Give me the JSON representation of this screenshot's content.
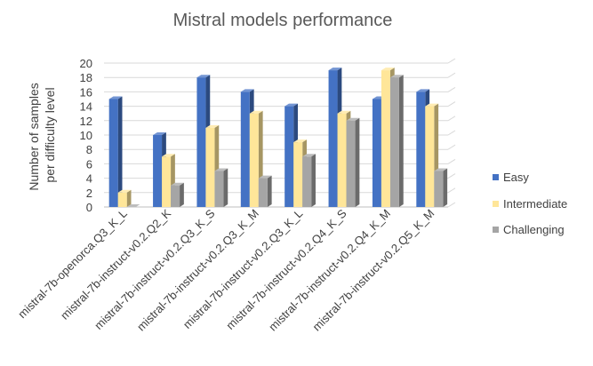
{
  "chart_data": {
    "type": "bar",
    "title": "Mistral models performance",
    "ylabel": "Number of samples per difficulty level",
    "ylabel_lines": [
      "Number of samples",
      "per difficulty level"
    ],
    "xlabel": "",
    "ylim": [
      0,
      20
    ],
    "yticks": [
      0,
      2,
      4,
      6,
      8,
      10,
      12,
      14,
      16,
      18,
      20
    ],
    "grid": true,
    "legend_position": "right",
    "categories": [
      "mistral-7b-openorca.Q3_K_L",
      "mistral-7b-instruct-v0.2.Q2_K",
      "mistral-7b-instruct-v0.2.Q3_K_S",
      "mistral-7b-instruct-v0.2.Q3_K_M",
      "mistral-7b-instruct-v0.2.Q3_K_L",
      "mistral-7b-instruct-v0.2.Q4_K_S",
      "mistral-7b-instruct-v0.2.Q4_K_M",
      "mistral-7b-instruct-v0.2.Q5_K_M"
    ],
    "series": [
      {
        "name": "Easy",
        "color": "#4472C4",
        "values": [
          15,
          10,
          18,
          16,
          14,
          19,
          15,
          16
        ]
      },
      {
        "name": "Intermediate",
        "color": "#FFE699",
        "values": [
          2,
          7,
          11,
          13,
          9,
          13,
          19,
          14
        ]
      },
      {
        "name": "Challenging",
        "color": "#A5A5A5",
        "values": [
          0,
          3,
          5,
          4,
          7,
          12,
          18,
          5
        ]
      }
    ]
  }
}
